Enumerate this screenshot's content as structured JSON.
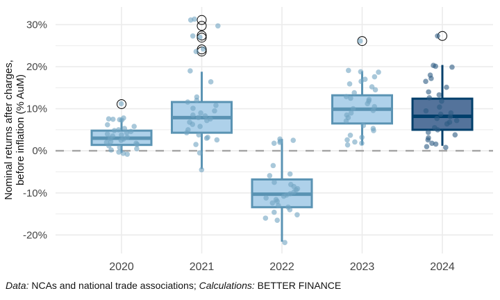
{
  "chart_data": {
    "type": "box",
    "title": "",
    "xlabel": "",
    "ylabel_lines": [
      "Nominal returns after charges,",
      "before inflation (% AuM)"
    ],
    "ylim": [
      -24.4,
      34.2
    ],
    "yticks": [
      -20,
      -10,
      0,
      10,
      20,
      30
    ],
    "ytick_labels": [
      "-20%",
      "-10%",
      "0%",
      "10%",
      "20%",
      "30%"
    ],
    "reference_line": 0,
    "grid": true,
    "categories": [
      "2020",
      "2021",
      "2022",
      "2023",
      "2024"
    ],
    "boxes": [
      {
        "year": "2020",
        "whisker_low": -0.5,
        "q1": 1.4,
        "median": 3.0,
        "q3": 4.8,
        "whisker_high": 7.6,
        "outliers": [
          11.1
        ],
        "style": "light"
      },
      {
        "year": "2021",
        "whisker_low": -4.3,
        "q1": 4.3,
        "median": 7.9,
        "q3": 11.6,
        "whisker_high": 18.8,
        "outliers": [
          31.1,
          29.7,
          27.4,
          26.9,
          24.1,
          23.6
        ],
        "style": "light"
      },
      {
        "year": "2022",
        "whisker_low": -21.6,
        "q1": -13.4,
        "median": -10.3,
        "q3": -6.8,
        "whisker_high": 2.8,
        "outliers": [],
        "style": "light"
      },
      {
        "year": "2023",
        "whisker_low": 1.4,
        "q1": 6.5,
        "median": 9.9,
        "q3": 13.2,
        "whisker_high": 18.9,
        "outliers": [
          26.1
        ],
        "style": "light"
      },
      {
        "year": "2024",
        "whisker_low": 1.2,
        "q1": 5.0,
        "median": 8.2,
        "q3": 12.4,
        "whisker_high": 20.4,
        "outliers": [
          27.3
        ],
        "style": "dark"
      }
    ],
    "points": [
      [
        11.2,
        7.8,
        7.6,
        7.5,
        7.4,
        7.3,
        6.2,
        5.8,
        5.3,
        5.0,
        4.8,
        4.6,
        4.3,
        4.0,
        3.8,
        3.5,
        3.2,
        3.0,
        2.8,
        2.5,
        2.2,
        2.0,
        1.8,
        1.5,
        1.2,
        0.8,
        0.5,
        0.2,
        -0.3,
        -0.6,
        -0.8
      ],
      [
        31.3,
        31.1,
        29.7,
        27.0,
        27.3,
        24.2,
        23.6,
        19.0,
        16.4,
        12.8,
        12.0,
        11.6,
        10.8,
        10.1,
        9.5,
        9.0,
        8.5,
        8.3,
        7.9,
        7.6,
        7.2,
        6.8,
        6.3,
        5.8,
        5.0,
        4.3,
        3.8,
        3.2,
        3.0,
        2.6,
        1.5,
        -0.5,
        -4.5
      ],
      [
        2.8,
        2.5,
        2.3,
        2.0,
        1.8,
        -3.5,
        -5.5,
        -5.9,
        -7.5,
        -8.0,
        -8.5,
        -9.0,
        -9.3,
        -9.8,
        -10.2,
        -10.5,
        -10.8,
        -11.2,
        -11.6,
        -12.0,
        -12.4,
        -13.0,
        -13.4,
        -14.0,
        -14.6,
        -15.2,
        -16.0,
        -16.5,
        -21.8
      ],
      [
        26.1,
        19.1,
        18.7,
        18.8,
        17.6,
        17.0,
        16.5,
        15.9,
        15.2,
        14.5,
        13.8,
        12.9,
        12.5,
        12.2,
        11.8,
        11.2,
        10.5,
        10.0,
        9.6,
        9.0,
        8.5,
        7.9,
        7.1,
        6.0,
        5.3,
        4.8,
        3.7,
        3.2,
        2.6,
        2.1,
        1.8,
        1.4
      ],
      [
        27.3,
        20.3,
        20.1,
        19.9,
        18.0,
        17.2,
        16.5,
        15.1,
        14.0,
        13.3,
        12.6,
        11.8,
        10.4,
        9.5,
        9.0,
        8.7,
        8.1,
        7.7,
        7.2,
        6.8,
        6.4,
        5.5,
        5.0,
        4.4,
        3.8,
        3.1,
        2.6,
        1.8,
        1.6,
        1.0,
        0.8
      ]
    ],
    "colors": {
      "light_fill": "#aed1ea",
      "light_stroke": "#5a93b3",
      "light_point": "#6fa3c2",
      "dark_fill": "#54739b",
      "dark_stroke": "#003f6b",
      "dark_point": "#2c5a82",
      "grid": "#ebebeb",
      "reference": "#a6a6a6"
    }
  },
  "caption": {
    "data_label": "Data:",
    "data_text": " NCAs and national trade associations; ",
    "calc_label": "Calculations:",
    "calc_text": " BETTER FINANCE"
  }
}
